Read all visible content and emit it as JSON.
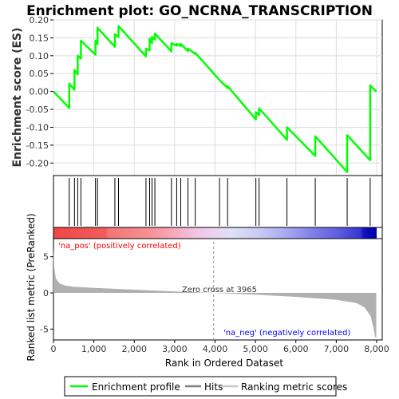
{
  "title": "Enrichment plot: GO_NCRNA_TRANSCRIPTION",
  "colors": {
    "es_line": "#00ff00",
    "hit": "#000000",
    "pos_label": "#ff0000",
    "neg_label": "#0000ff",
    "metric_fill": "#b0b0b0",
    "grid": "#dddddd",
    "zero_line": "#909090"
  },
  "chart_data": [
    {
      "type": "line",
      "name": "enrichment-profile",
      "ylabel": "Enrichment score (ES)",
      "ylim": [
        -0.235,
        0.2
      ],
      "yticks": [
        "0.20",
        "0.15",
        "0.10",
        "0.05",
        "0.00",
        "-0.05",
        "-0.10",
        "-0.15",
        "-0.20"
      ],
      "ytick_values": [
        0.2,
        0.15,
        0.1,
        0.05,
        0.0,
        -0.05,
        -0.1,
        -0.15,
        -0.2
      ],
      "grid": true,
      "x": [
        0,
        390,
        390,
        520,
        520,
        600,
        600,
        680,
        680,
        1040,
        1040,
        1090,
        1090,
        1520,
        1520,
        1610,
        1610,
        2290,
        2290,
        2380,
        2380,
        2440,
        2440,
        2510,
        2510,
        2920,
        2920,
        3050,
        3050,
        3150,
        3150,
        3330,
        3330,
        3510,
        3510,
        4110,
        4110,
        4310,
        4310,
        5010,
        5010,
        5090,
        5090,
        5780,
        5780,
        6480,
        6480,
        7270,
        7270,
        7840,
        7840,
        7990
      ],
      "y": [
        0.0,
        -0.046,
        0.022,
        0.005,
        0.06,
        0.048,
        0.1,
        0.092,
        0.142,
        0.103,
        0.142,
        0.133,
        0.178,
        0.125,
        0.16,
        0.153,
        0.183,
        0.098,
        0.12,
        0.115,
        0.148,
        0.135,
        0.153,
        0.145,
        0.162,
        0.112,
        0.135,
        0.128,
        0.133,
        0.127,
        0.133,
        0.113,
        0.12,
        0.105,
        0.108,
        0.032,
        0.032,
        0.01,
        0.015,
        -0.078,
        -0.058,
        -0.066,
        -0.047,
        -0.135,
        -0.1,
        -0.18,
        -0.125,
        -0.225,
        -0.122,
        -0.192,
        0.017,
        0.0
      ]
    },
    {
      "type": "scatter",
      "name": "hits",
      "x": [
        390,
        520,
        600,
        680,
        1040,
        1090,
        1520,
        1610,
        2290,
        2380,
        2440,
        2510,
        2920,
        3050,
        3150,
        3330,
        3510,
        4110,
        4310,
        5010,
        5090,
        5780,
        6480,
        7270,
        7840
      ]
    },
    {
      "type": "area",
      "name": "ranked-metric",
      "xlabel": "Rank in Ordered Dataset",
      "ylabel": "Ranked list metric (PreRanked)",
      "xlim": [
        0,
        8000
      ],
      "ylim": [
        -6.5,
        7.5
      ],
      "xticks": [
        "0",
        "1,000",
        "2,000",
        "3,000",
        "4,000",
        "5,000",
        "6,000",
        "7,000",
        "8,000"
      ],
      "xtick_values": [
        0,
        1000,
        2000,
        3000,
        4000,
        5000,
        6000,
        7000,
        8000
      ],
      "yticks": [
        "5",
        "0",
        "-5"
      ],
      "ytick_values": [
        5,
        0,
        -5
      ],
      "x": [
        0,
        20,
        60,
        150,
        300,
        500,
        1000,
        2000,
        3000,
        3965,
        5000,
        6000,
        7000,
        7500,
        7700,
        7850,
        7920,
        7960,
        7990
      ],
      "y": [
        6.2,
        3.5,
        2.0,
        1.3,
        1.0,
        0.85,
        0.7,
        0.45,
        0.2,
        0.0,
        -0.25,
        -0.55,
        -0.95,
        -1.4,
        -2.0,
        -3.2,
        -4.8,
        -6.0,
        -6.3
      ],
      "zero_cross": 3965
    }
  ],
  "annotations": {
    "pos_label": "'na_pos' (positively correlated)",
    "neg_label": "'na_neg' (negatively correlated)",
    "zero_cross": "Zero cross at 3965"
  },
  "legend": {
    "placement": "bottom",
    "items": [
      {
        "label": "Enrichment profile",
        "color": "#00ff00"
      },
      {
        "label": "Hits",
        "color": "#808080"
      },
      {
        "label": "Ranking metric scores",
        "color": "#c8c8c8"
      }
    ]
  }
}
